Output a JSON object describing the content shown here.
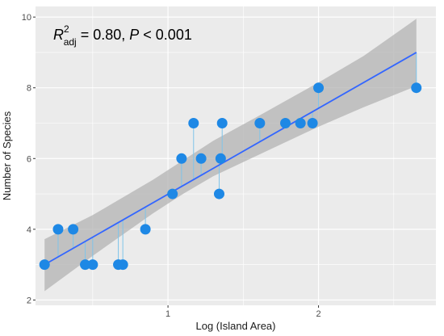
{
  "chart_data": {
    "type": "scatter",
    "xlabel": "Log (Island Area)",
    "ylabel": "Number of Species",
    "annotation": {
      "r_symbol": "R",
      "superscript": "2",
      "subscript": "adj",
      "rest": " = 0.80, ",
      "p_symbol": "P",
      "p_rest": " < 0.001"
    },
    "xlim": [
      0.12,
      2.78
    ],
    "ylim": [
      1.85,
      10.3
    ],
    "x_ticks": [
      1,
      2
    ],
    "x_tick_labels": [
      "1",
      "2"
    ],
    "y_ticks": [
      2,
      4,
      6,
      8,
      10
    ],
    "y_tick_labels": [
      "2",
      "4",
      "6",
      "8",
      "10"
    ],
    "grid": true,
    "point_color": "#1e88e5",
    "residual_color": "#7fc4ea",
    "fit_color": "#3366ff",
    "ci_color": "#b3b3b3",
    "panel_color": "#ebebeb",
    "fit": {
      "x0": 0.18,
      "y0": 3.0,
      "x1": 2.65,
      "y1": 9.0
    },
    "ci_band": {
      "x": [
        0.18,
        0.5,
        0.9,
        1.1,
        1.3,
        1.6,
        2.0,
        2.3,
        2.65
      ],
      "lower": [
        2.25,
        3.25,
        4.45,
        5.0,
        5.5,
        6.1,
        6.9,
        7.45,
        8.05
      ],
      "upper": [
        3.72,
        4.4,
        5.4,
        5.95,
        6.5,
        7.2,
        8.15,
        8.9,
        9.95
      ]
    },
    "points": [
      {
        "x": 0.18,
        "y": 3
      },
      {
        "x": 0.27,
        "y": 4
      },
      {
        "x": 0.37,
        "y": 4
      },
      {
        "x": 0.45,
        "y": 3
      },
      {
        "x": 0.5,
        "y": 3
      },
      {
        "x": 0.67,
        "y": 3
      },
      {
        "x": 0.7,
        "y": 3
      },
      {
        "x": 0.85,
        "y": 4
      },
      {
        "x": 1.03,
        "y": 5
      },
      {
        "x": 1.09,
        "y": 6
      },
      {
        "x": 1.17,
        "y": 7
      },
      {
        "x": 1.22,
        "y": 6
      },
      {
        "x": 1.34,
        "y": 5
      },
      {
        "x": 1.35,
        "y": 6
      },
      {
        "x": 1.36,
        "y": 7
      },
      {
        "x": 1.61,
        "y": 7
      },
      {
        "x": 1.78,
        "y": 7
      },
      {
        "x": 1.88,
        "y": 7
      },
      {
        "x": 1.96,
        "y": 7
      },
      {
        "x": 2.0,
        "y": 8
      },
      {
        "x": 2.65,
        "y": 8
      }
    ]
  }
}
